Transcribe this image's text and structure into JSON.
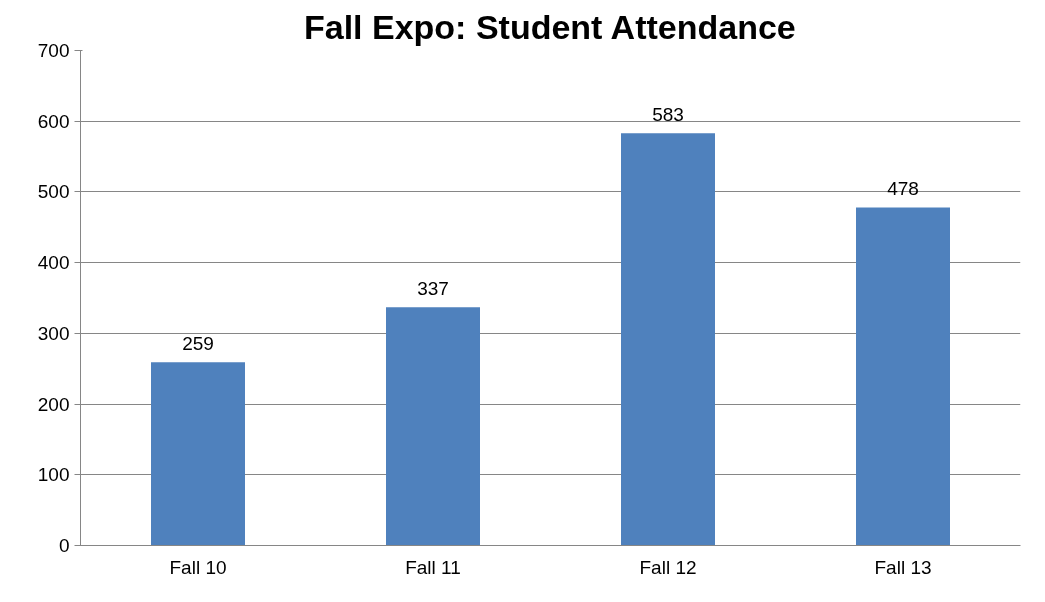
{
  "chart_data": {
    "type": "bar",
    "title": "Fall Expo: Student Attendance",
    "categories": [
      "Fall 10",
      "Fall 11",
      "Fall 12",
      "Fall 13"
    ],
    "values": [
      259,
      337,
      583,
      478
    ],
    "color": "#4f81bd",
    "ylim": [
      0,
      700
    ],
    "yticks": [
      0,
      100,
      200,
      300,
      400,
      500,
      600,
      700
    ],
    "grid": "y",
    "data_labels": true
  }
}
